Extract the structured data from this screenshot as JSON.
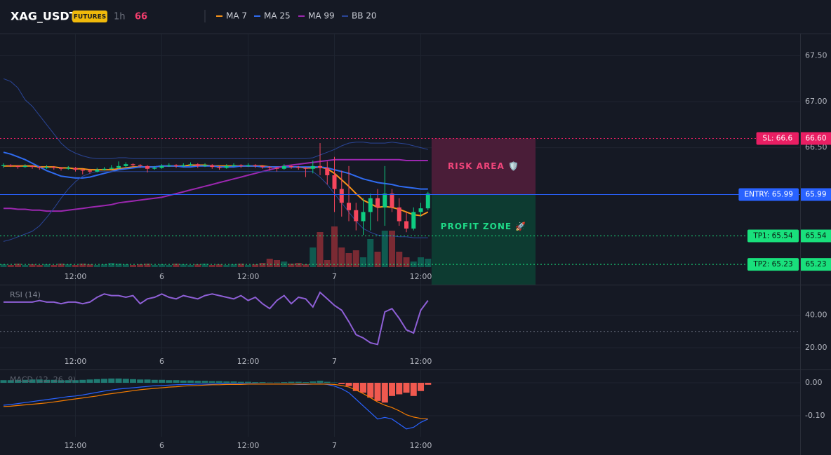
{
  "header": {
    "symbol": "XAG_USDT",
    "badge": "FUTURES",
    "interval": "1h",
    "price": 66
  },
  "chart_data": [
    {
      "type": "candlestick",
      "xlim": [
        -0.49,
        110.73
      ],
      "xticks": [
        {
          "value": 10,
          "label": "12:00"
        },
        {
          "value": 22,
          "label": "6"
        },
        {
          "value": 34,
          "label": "12:00"
        },
        {
          "value": 46,
          "label": "7"
        },
        {
          "value": 58,
          "label": "12:00"
        }
      ],
      "ylim": [
        65.01,
        67.74
      ],
      "yticks": [
        {
          "value": 67.5,
          "label": "67.50"
        },
        {
          "value": 67,
          "label": "67.00"
        },
        {
          "value": 66.5,
          "label": "66.50"
        }
      ],
      "grid": true,
      "up_color": "#0ecb81",
      "down_color": "#f6465d",
      "volume_up_color": "#0f5a50",
      "volume_down_color": "#7a2a33",
      "open": [
        66.3,
        66.31,
        66.3,
        66.29,
        66.3,
        66.29,
        66.28,
        66.29,
        66.28,
        66.27,
        66.28,
        66.26,
        66.25,
        66.24,
        66.26,
        66.27,
        66.28,
        66.3,
        66.32,
        66.31,
        66.3,
        66.27,
        66.28,
        66.3,
        66.31,
        66.3,
        66.31,
        66.32,
        66.3,
        66.31,
        66.29,
        66.28,
        66.3,
        66.31,
        66.3,
        66.31,
        66.3,
        66.29,
        66.28,
        66.27,
        66.3,
        66.29,
        66.28,
        66.27,
        66.3,
        66.28,
        66.2,
        66.05,
        65.9,
        65.82,
        65.7,
        65.8,
        65.95,
        65.85,
        66.0,
        65.85,
        65.7,
        65.62,
        65.8,
        65.84
      ],
      "high": [
        66.33,
        66.32,
        66.31,
        66.32,
        66.31,
        66.3,
        66.31,
        66.3,
        66.29,
        66.3,
        66.29,
        66.27,
        66.27,
        66.28,
        66.29,
        66.31,
        66.35,
        66.34,
        66.33,
        66.32,
        66.31,
        66.3,
        66.32,
        66.33,
        66.32,
        66.33,
        66.34,
        66.33,
        66.33,
        66.32,
        66.3,
        66.32,
        66.33,
        66.32,
        66.33,
        66.32,
        66.31,
        66.3,
        66.29,
        66.32,
        66.31,
        66.3,
        66.29,
        66.36,
        66.55,
        66.35,
        66.4,
        66.25,
        66.3,
        65.9,
        65.95,
        66.0,
        66.05,
        66.3,
        66.05,
        65.95,
        65.8,
        65.85,
        65.9,
        66.02
      ],
      "low": [
        66.28,
        66.29,
        66.27,
        66.28,
        66.27,
        66.26,
        66.27,
        66.26,
        66.25,
        66.26,
        66.24,
        66.21,
        66.22,
        66.23,
        66.25,
        66.26,
        66.27,
        66.29,
        66.29,
        66.28,
        66.23,
        66.26,
        66.27,
        66.29,
        66.28,
        66.29,
        66.3,
        66.28,
        66.29,
        66.27,
        66.26,
        66.27,
        66.29,
        66.28,
        66.29,
        66.28,
        66.27,
        66.25,
        66.24,
        66.26,
        66.27,
        66.26,
        66.18,
        66.22,
        66.2,
        66.1,
        65.8,
        65.75,
        65.7,
        65.6,
        65.55,
        65.6,
        65.7,
        65.65,
        65.8,
        65.65,
        65.58,
        65.6,
        65.75,
        65.82
      ],
      "close": [
        66.31,
        66.3,
        66.29,
        66.3,
        66.29,
        66.28,
        66.29,
        66.28,
        66.27,
        66.28,
        66.26,
        66.25,
        66.24,
        66.26,
        66.27,
        66.28,
        66.3,
        66.32,
        66.31,
        66.3,
        66.27,
        66.28,
        66.3,
        66.31,
        66.3,
        66.31,
        66.32,
        66.3,
        66.31,
        66.29,
        66.28,
        66.3,
        66.31,
        66.3,
        66.31,
        66.3,
        66.29,
        66.28,
        66.27,
        66.3,
        66.29,
        66.28,
        66.27,
        66.3,
        66.28,
        66.2,
        66.05,
        65.9,
        65.82,
        65.7,
        65.8,
        65.95,
        65.85,
        66.0,
        65.85,
        65.7,
        65.62,
        65.8,
        65.84,
        66.0
      ],
      "volume": [
        4,
        3,
        5,
        3,
        4,
        3,
        4,
        3,
        5,
        4,
        3,
        5,
        4,
        3,
        4,
        6,
        5,
        4,
        3,
        4,
        5,
        3,
        4,
        3,
        5,
        4,
        3,
        4,
        5,
        3,
        4,
        3,
        4,
        5,
        3,
        4,
        6,
        12,
        10,
        8,
        5,
        6,
        4,
        28,
        50,
        10,
        58,
        28,
        20,
        24,
        14,
        40,
        22,
        52,
        52,
        22,
        14,
        8,
        14,
        12
      ],
      "series": [
        {
          "name": "MA 7",
          "color": "#f7931a",
          "values": [
            66.3,
            66.3,
            66.3,
            66.3,
            66.3,
            66.29,
            66.29,
            66.29,
            66.28,
            66.28,
            66.27,
            66.27,
            66.26,
            66.26,
            66.26,
            66.26,
            66.27,
            66.28,
            66.29,
            66.29,
            66.29,
            66.29,
            66.3,
            66.3,
            66.3,
            66.3,
            66.31,
            66.31,
            66.31,
            66.3,
            66.3,
            66.3,
            66.3,
            66.3,
            66.3,
            66.3,
            66.3,
            66.29,
            66.29,
            66.29,
            66.29,
            66.29,
            66.28,
            66.28,
            66.29,
            66.27,
            66.22,
            66.15,
            66.08,
            66.0,
            65.93,
            65.89,
            65.85,
            65.86,
            65.85,
            65.83,
            65.8,
            65.77,
            65.76,
            65.8
          ]
        },
        {
          "name": "MA 25",
          "color": "#2f6bf0",
          "values": [
            66.45,
            66.43,
            66.4,
            66.37,
            66.33,
            66.29,
            66.25,
            66.22,
            66.19,
            66.18,
            66.17,
            66.17,
            66.18,
            66.2,
            66.22,
            66.24,
            66.26,
            66.27,
            66.28,
            66.29,
            66.29,
            66.29,
            66.3,
            66.3,
            66.3,
            66.29,
            66.29,
            66.3,
            66.3,
            66.3,
            66.29,
            66.29,
            66.29,
            66.3,
            66.3,
            66.3,
            66.29,
            66.29,
            66.29,
            66.29,
            66.29,
            66.29,
            66.29,
            66.29,
            66.29,
            66.28,
            66.26,
            66.24,
            66.22,
            66.19,
            66.16,
            66.14,
            66.12,
            66.11,
            66.1,
            66.08,
            66.07,
            66.06,
            66.05,
            66.05
          ]
        },
        {
          "name": "MA 99",
          "color": "#9c27b0",
          "values": [
            65.84,
            65.84,
            65.83,
            65.83,
            65.82,
            65.82,
            65.81,
            65.81,
            65.81,
            65.82,
            65.83,
            65.84,
            65.85,
            65.86,
            65.87,
            65.88,
            65.9,
            65.91,
            65.92,
            65.93,
            65.94,
            65.95,
            65.96,
            65.98,
            66.0,
            66.02,
            66.04,
            66.06,
            66.08,
            66.1,
            66.12,
            66.14,
            66.16,
            66.18,
            66.2,
            66.22,
            66.24,
            66.26,
            66.28,
            66.3,
            66.31,
            66.32,
            66.33,
            66.34,
            66.35,
            66.36,
            66.37,
            66.37,
            66.37,
            66.37,
            66.37,
            66.37,
            66.37,
            66.37,
            66.37,
            66.37,
            66.36,
            66.36,
            66.36,
            66.36
          ]
        },
        {
          "name": "BB 20",
          "color": "#2a4597",
          "values": [
            67.25,
            67.22,
            67.15,
            67.02,
            66.95,
            66.85,
            66.75,
            66.65,
            66.55,
            66.48,
            66.44,
            66.41,
            66.39,
            66.38,
            66.38,
            66.38,
            66.39,
            66.39,
            66.38,
            66.38,
            66.38,
            66.38,
            66.38,
            66.38,
            66.38,
            66.38,
            66.38,
            66.38,
            66.38,
            66.38,
            66.38,
            66.38,
            66.38,
            66.38,
            66.38,
            66.38,
            66.38,
            66.38,
            66.38,
            66.38,
            66.38,
            66.38,
            66.38,
            66.39,
            66.42,
            66.45,
            66.48,
            66.52,
            66.55,
            66.56,
            66.56,
            66.55,
            66.55,
            66.55,
            66.56,
            66.55,
            66.54,
            66.52,
            66.5,
            66.48
          ],
          "lower_values": [
            65.48,
            65.5,
            65.53,
            65.56,
            65.59,
            65.65,
            65.74,
            65.84,
            65.95,
            66.05,
            66.13,
            66.19,
            66.22,
            66.24,
            66.24,
            66.24,
            66.24,
            66.24,
            66.24,
            66.24,
            66.24,
            66.24,
            66.24,
            66.24,
            66.24,
            66.24,
            66.24,
            66.24,
            66.24,
            66.24,
            66.24,
            66.24,
            66.24,
            66.24,
            66.24,
            66.24,
            66.24,
            66.24,
            66.24,
            66.24,
            66.24,
            66.24,
            66.24,
            66.24,
            66.18,
            66.1,
            66.0,
            65.9,
            65.8,
            65.7,
            65.62,
            65.58,
            65.55,
            65.54,
            65.54,
            65.53,
            65.53,
            65.52,
            65.52,
            65.52
          ]
        }
      ],
      "levels": [
        {
          "value": 66.6,
          "label": "SL: 66.6",
          "axis_label": "66.60",
          "color": "#e91e63",
          "text_color": "#ffffff",
          "dashed": true
        },
        {
          "value": 65.99,
          "label": "ENTRY: 65.99",
          "axis_label": "65.99",
          "color": "#2962ff",
          "text_color": "#ffffff",
          "dashed": false
        },
        {
          "value": 65.54,
          "label": "TP1: 65.54",
          "axis_label": "65.54",
          "color": "#19e07c",
          "text_color": "#0b1a12",
          "dashed": true
        },
        {
          "value": 65.23,
          "label": "TP2: 65.23",
          "axis_label": "65.23",
          "color": "#19e07c",
          "text_color": "#0b1a12",
          "dashed": true
        }
      ],
      "zones": [
        {
          "label": "RISK AREA 🛡️",
          "from": 65.99,
          "to": 66.6,
          "color": "#4a1d38",
          "text_color": "#f0457a"
        },
        {
          "label": "PROFIT ZONE 🚀",
          "from": 65.99,
          "to": 65.01,
          "color": "#0d3b31",
          "text_color": "#1fd987"
        }
      ]
    },
    {
      "type": "line",
      "title": "RSI (14)",
      "ylim": [
        16.1,
        58.3
      ],
      "yticks": [
        {
          "value": 40,
          "label": "40.00"
        },
        {
          "value": 20,
          "label": "20.00"
        }
      ],
      "levels": [
        30
      ],
      "series": [
        {
          "color": "#8e5fd6",
          "values": [
            48,
            48,
            48,
            48,
            48,
            49,
            48,
            48,
            47,
            48,
            48,
            47,
            48,
            51,
            53,
            52,
            52,
            51,
            52,
            47,
            50,
            51,
            53,
            51,
            50,
            52,
            51,
            50,
            52,
            53,
            52,
            51,
            50,
            52,
            49,
            51,
            47,
            44,
            49,
            52,
            47,
            51,
            50,
            45,
            54,
            50,
            46,
            43,
            36,
            28,
            26,
            23,
            22,
            42,
            44,
            38,
            31,
            29,
            43,
            49
          ]
        }
      ]
    },
    {
      "type": "macd",
      "title": "MACD (12, 26, 9)",
      "ylim": [
        -0.1638,
        0.0383
      ],
      "yticks": [
        {
          "value": 0,
          "label": "0.00"
        },
        {
          "value": -0.1,
          "label": "-0.10"
        }
      ],
      "pos_color": "#1f7a72",
      "neg_color": "#f0594f",
      "histogram": [
        0.008,
        0.008,
        0.009,
        0.009,
        0.01,
        0.01,
        0.009,
        0.009,
        0.008,
        0.008,
        0.008,
        0.009,
        0.01,
        0.011,
        0.012,
        0.013,
        0.013,
        0.012,
        0.011,
        0.01,
        0.01,
        0.009,
        0.009,
        0.008,
        0.008,
        0.007,
        0.007,
        0.006,
        0.006,
        0.005,
        0.005,
        0.004,
        0.004,
        0.003,
        0.003,
        0.002,
        0.002,
        0.001,
        0.001,
        0.002,
        0.003,
        0.003,
        0.002,
        0.004,
        0.006,
        0.003,
        0.001,
        -0.004,
        -0.01,
        -0.025,
        -0.03,
        -0.045,
        -0.055,
        -0.06,
        -0.04,
        -0.035,
        -0.03,
        -0.04,
        -0.025,
        -0.006
      ],
      "series": [
        {
          "color": "#2962ff",
          "values": [
            -0.068,
            -0.066,
            -0.063,
            -0.06,
            -0.057,
            -0.054,
            -0.051,
            -0.048,
            -0.045,
            -0.042,
            -0.04,
            -0.037,
            -0.033,
            -0.029,
            -0.025,
            -0.022,
            -0.019,
            -0.017,
            -0.015,
            -0.013,
            -0.011,
            -0.009,
            -0.008,
            -0.007,
            -0.006,
            -0.005,
            -0.005,
            -0.004,
            -0.004,
            -0.004,
            -0.003,
            -0.003,
            -0.003,
            -0.003,
            -0.003,
            -0.003,
            -0.004,
            -0.004,
            -0.004,
            -0.004,
            -0.004,
            -0.005,
            -0.005,
            -0.004,
            -0.003,
            -0.005,
            -0.01,
            -0.018,
            -0.03,
            -0.05,
            -0.07,
            -0.09,
            -0.11,
            -0.105,
            -0.11,
            -0.125,
            -0.14,
            -0.135,
            -0.12,
            -0.11
          ]
        },
        {
          "color": "#f57c00",
          "values": [
            -0.072,
            -0.071,
            -0.069,
            -0.067,
            -0.065,
            -0.063,
            -0.061,
            -0.058,
            -0.055,
            -0.052,
            -0.049,
            -0.046,
            -0.043,
            -0.04,
            -0.036,
            -0.033,
            -0.03,
            -0.027,
            -0.024,
            -0.021,
            -0.019,
            -0.017,
            -0.015,
            -0.013,
            -0.012,
            -0.01,
            -0.009,
            -0.008,
            -0.007,
            -0.006,
            -0.006,
            -0.005,
            -0.005,
            -0.005,
            -0.004,
            -0.004,
            -0.004,
            -0.004,
            -0.004,
            -0.004,
            -0.004,
            -0.004,
            -0.004,
            -0.004,
            -0.004,
            -0.004,
            -0.005,
            -0.008,
            -0.013,
            -0.022,
            -0.033,
            -0.045,
            -0.058,
            -0.068,
            -0.075,
            -0.085,
            -0.097,
            -0.104,
            -0.108,
            -0.11
          ]
        }
      ]
    }
  ]
}
